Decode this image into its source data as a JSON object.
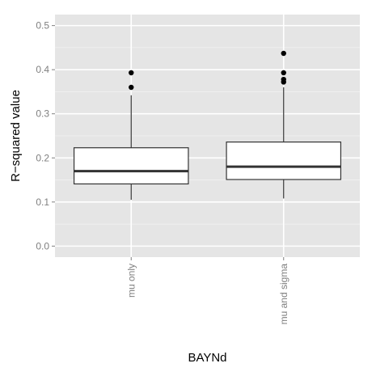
{
  "chart_data": {
    "type": "box",
    "xlabel": "BAYNd",
    "ylabel": "R−squared value",
    "ylim": [
      -0.025,
      0.525
    ],
    "y_ticks": [
      0.0,
      0.1,
      0.2,
      0.3,
      0.4,
      0.5
    ],
    "y_tick_labels": [
      "0.0",
      "0.1",
      "0.2",
      "0.3",
      "0.4",
      "0.5"
    ],
    "categories": [
      "mu only",
      "mu and sigma"
    ],
    "grid": true,
    "series": [
      {
        "whisker_low": 0.105,
        "q1": 0.141,
        "median": 0.17,
        "q3": 0.223,
        "whisker_high": 0.342,
        "outliers": [
          0.36,
          0.393
        ]
      },
      {
        "whisker_low": 0.108,
        "q1": 0.151,
        "median": 0.18,
        "q3": 0.236,
        "whisker_high": 0.36,
        "outliers": [
          0.372,
          0.378,
          0.393,
          0.437
        ]
      }
    ],
    "colors": {
      "panel_bg": "#e5e5e5",
      "grid_major": "#ffffff",
      "grid_minor": "#f2f2f2",
      "box_fill": "#ffffff",
      "box_stroke": "#333333",
      "outlier": "#000000",
      "tick_text": "#7f7f7f"
    }
  }
}
